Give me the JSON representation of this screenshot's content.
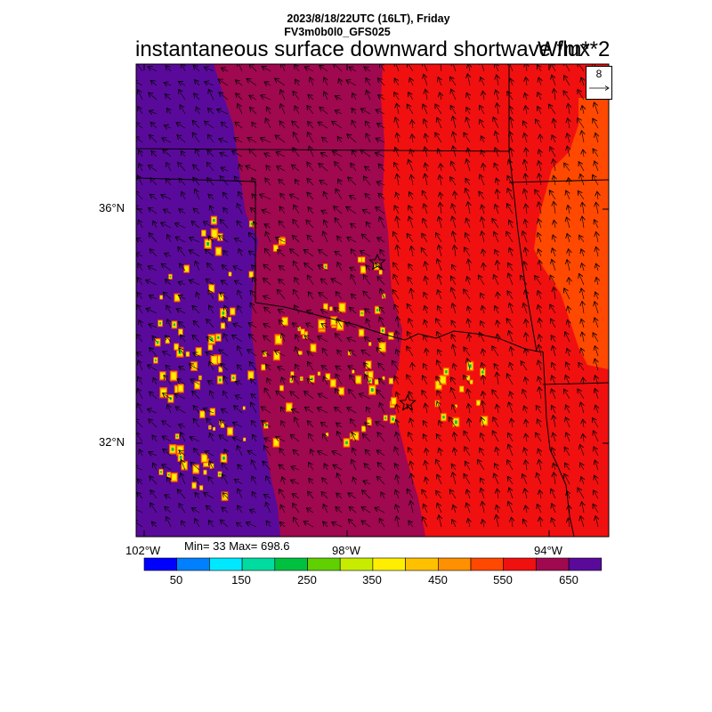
{
  "header": {
    "time_line": "2023/8/18/22UTC (16LT), Friday",
    "model_line": "FV3m0b0l0_GFS025",
    "title": "instantaneous surface downward shortwave flux",
    "units": "W/m**2"
  },
  "vector_reference": {
    "value": "8"
  },
  "axes": {
    "lat_labels": [
      "36°N",
      "32°N"
    ],
    "lon_labels": [
      "102°W",
      "98°W",
      "94°W"
    ]
  },
  "stats": {
    "text": "Min= 33 Max= 698.6"
  },
  "colorbar": {
    "tick_labels": [
      "50",
      "150",
      "250",
      "350",
      "450",
      "550",
      "650"
    ],
    "colors": [
      "#0000ff",
      "#0080ff",
      "#00e8ff",
      "#00dca0",
      "#00c040",
      "#60d000",
      "#c8ec00",
      "#ffee00",
      "#ffc000",
      "#ff9000",
      "#ff4800",
      "#f01010",
      "#a00850",
      "#5a0a9a"
    ]
  },
  "field_colors": {
    "west_region": "#5a0a9a",
    "central_region": "#a00850",
    "east_region": "#f01010",
    "far_east_region": "#ff4800"
  },
  "markers": [
    "star",
    "star"
  ]
}
